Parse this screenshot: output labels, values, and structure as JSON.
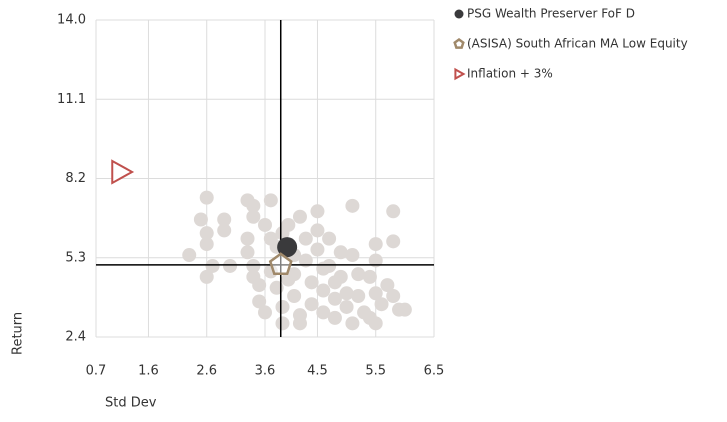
{
  "chart_data": {
    "type": "scatter",
    "xlabel": "Std Dev",
    "ylabel": "Return",
    "xlim": [
      0.7,
      6.5
    ],
    "xticks": [
      0.7,
      1.6,
      2.6,
      3.6,
      4.5,
      5.5,
      6.5
    ],
    "ylim": [
      2.4,
      14
    ],
    "yticks": [
      2.4,
      5.3,
      8.2,
      11.1,
      {
        "value": 14,
        "label": "14.0"
      }
    ],
    "grid": true,
    "legend": "top-right",
    "reference_lines": {
      "x": 3.87,
      "y": 5.04,
      "color": "#000000"
    },
    "series": [
      {
        "color": "#ddd8d5",
        "marker": "circle",
        "x": [
          2.3,
          2.6,
          2.5,
          2.6,
          2.6,
          2.7,
          2.6,
          2.9,
          2.9,
          3.0,
          3.3,
          3.4,
          3.4,
          3.3,
          3.3,
          3.4,
          3.4,
          3.5,
          3.5,
          3.6,
          3.6,
          3.7,
          3.7,
          3.8,
          3.7,
          3.8,
          3.9,
          3.9,
          4.0,
          4.1,
          4.1,
          4.1,
          4.2,
          4.2,
          4.3,
          4.3,
          4.4,
          4.4,
          4.5,
          4.5,
          4.5,
          4.6,
          4.6,
          4.6,
          4.7,
          4.7,
          4.8,
          4.8,
          4.8,
          4.9,
          4.9,
          5.0,
          5.0,
          5.1,
          5.1,
          5.1,
          5.2,
          5.2,
          5.3,
          5.4,
          5.4,
          5.5,
          5.5,
          5.5,
          5.6,
          5.7,
          5.8,
          5.8,
          5.8,
          5.9,
          6.0,
          5.5,
          3.9,
          4.2,
          4.0
        ],
        "values": [
          5.4,
          7.5,
          6.7,
          6.2,
          5.8,
          5.0,
          4.6,
          6.7,
          6.3,
          5.0,
          7.4,
          7.2,
          6.8,
          6.0,
          5.5,
          5.0,
          4.6,
          4.3,
          3.7,
          3.3,
          6.5,
          7.4,
          6.0,
          5.7,
          4.8,
          4.2,
          3.5,
          2.9,
          6.5,
          5.4,
          4.7,
          3.9,
          3.2,
          2.9,
          6.0,
          5.2,
          4.4,
          3.6,
          7.0,
          6.3,
          5.6,
          4.9,
          4.1,
          3.3,
          6.0,
          5.0,
          4.4,
          3.8,
          3.1,
          5.5,
          4.6,
          4.0,
          3.5,
          7.2,
          5.4,
          2.9,
          4.7,
          3.9,
          3.3,
          4.6,
          3.1,
          5.2,
          4.0,
          5.8,
          3.6,
          4.3,
          7.0,
          5.9,
          3.9,
          3.4,
          3.4,
          2.9,
          6.2,
          6.8,
          4.5
        ]
      },
      {
        "name": "PSG Wealth Preserver FoF D",
        "color": "#3a3a3c",
        "marker": "circle",
        "x": [
          3.98
        ],
        "values": [
          5.69
        ]
      },
      {
        "name": "(ASISA) South African MA Low Equity",
        "color": "#a0896a",
        "marker": "pentagon",
        "x": [
          3.87
        ],
        "values": [
          5.04
        ]
      },
      {
        "name": "Inflation + 3%",
        "color": "#c0504d",
        "marker": "triangle",
        "x": [
          1.13
        ],
        "values": [
          8.44
        ]
      }
    ]
  }
}
